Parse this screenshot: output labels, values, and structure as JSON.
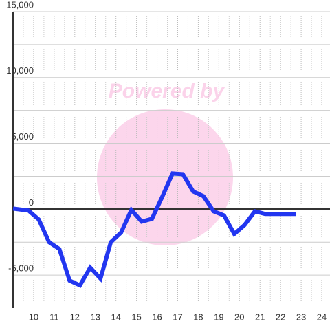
{
  "chart_data": {
    "type": "line",
    "watermark": "Powered by",
    "x": [
      9,
      9.75,
      10.25,
      10.75,
      11.25,
      11.75,
      12.25,
      12.75,
      13.25,
      13.75,
      14.25,
      14.75,
      15.25,
      15.75,
      16.25,
      16.75,
      17.25,
      17.75,
      18.25,
      18.75,
      19.25,
      19.75,
      20.25,
      20.75,
      21.25,
      21.75,
      22.25,
      22.75
    ],
    "series": [
      {
        "color": "#2236f0",
        "values": [
          50,
          -100,
          -780,
          -2500,
          -3020,
          -5420,
          -5780,
          -4430,
          -5260,
          -2500,
          -1770,
          -50,
          -940,
          -730,
          940,
          2710,
          2660,
          1350,
          990,
          -160,
          -470,
          -1880,
          -1200,
          -160,
          -360,
          -360,
          -360,
          -360
        ]
      }
    ],
    "xlim": [
      9,
      24.4
    ],
    "xticks": [
      10,
      11,
      12,
      13,
      14,
      15,
      16,
      17,
      18,
      19,
      20,
      21,
      22,
      23,
      24
    ],
    "ylim": [
      -7500,
      15000
    ],
    "yticks": [
      {
        "value": -5000,
        "label": "-5,000"
      },
      0,
      {
        "value": 5000,
        "label": "5,000"
      },
      {
        "value": 10000,
        "label": "10,000"
      },
      {
        "value": 15000,
        "label": "15,000"
      }
    ],
    "grid": true
  }
}
